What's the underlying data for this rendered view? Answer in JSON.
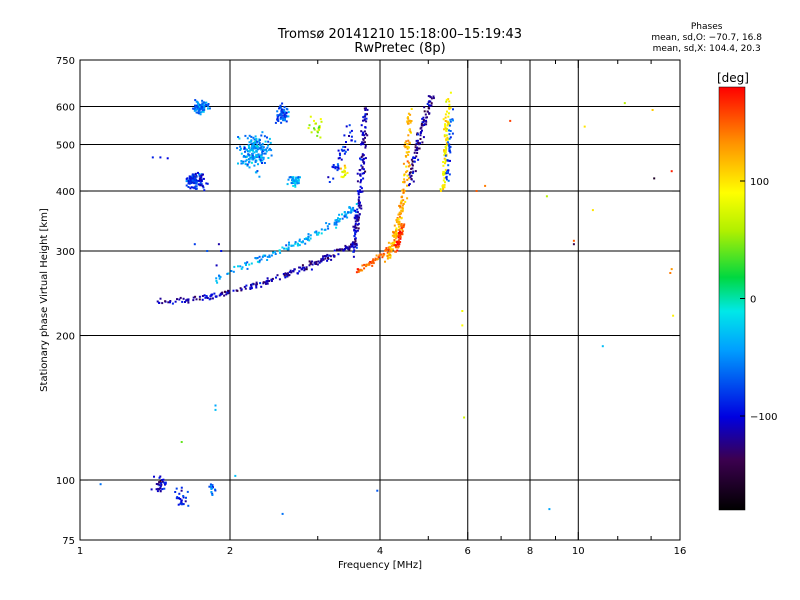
{
  "chart_data": {
    "type": "scatter",
    "title": "Tromsø 20141210 15:18:00–15:19:43",
    "subtitle": "RwPretec (8p)",
    "stats": {
      "heading": "Phases",
      "line1": "mean, sd,O: −70.7, 16.8",
      "line2": "mean, sd,X: 104.4, 20.3"
    },
    "xlabel": "Frequency [MHz]",
    "ylabel": "Stationary phase Virtual Height [km]",
    "x_scale": "log",
    "y_scale": "log",
    "xlim": [
      1,
      16
    ],
    "ylim": [
      75,
      750
    ],
    "x_ticks": [
      {
        "v": 1,
        "label": "1"
      },
      {
        "v": 2,
        "label": "2"
      },
      {
        "v": 4,
        "label": "4"
      },
      {
        "v": 6,
        "label": "6"
      },
      {
        "v": 8,
        "label": "8"
      },
      {
        "v": 10,
        "label": "10"
      },
      {
        "v": 16,
        "label": "16"
      }
    ],
    "x_minor": [
      3,
      5,
      7,
      9,
      12,
      14
    ],
    "y_ticks": [
      {
        "v": 75,
        "label": "75"
      },
      {
        "v": 100,
        "label": "100"
      },
      {
        "v": 200,
        "label": "200"
      },
      {
        "v": 300,
        "label": "300"
      },
      {
        "v": 400,
        "label": "400"
      },
      {
        "v": 500,
        "label": "500"
      },
      {
        "v": 600,
        "label": "600"
      },
      {
        "v": 750,
        "label": "750"
      }
    ],
    "grid": {
      "vertical": [
        2,
        4,
        6,
        8,
        10
      ],
      "horizontal": [
        100,
        200,
        300,
        400,
        500,
        600
      ]
    },
    "colorbar": {
      "label": "[deg]",
      "range": [
        -180,
        180
      ],
      "ticks": [
        {
          "v": 100,
          "label": "100"
        },
        {
          "v": 0,
          "label": "0"
        },
        {
          "v": -100,
          "label": "−100"
        }
      ]
    },
    "segments": [
      {
        "x": [
          1.45,
          1.6,
          1.75,
          1.9,
          2.0,
          2.2,
          2.4,
          2.6,
          2.8,
          3.0,
          3.2,
          3.4,
          3.55
        ],
        "y": [
          236,
          237,
          239,
          243,
          246,
          252,
          260,
          268,
          276,
          285,
          293,
          302,
          312
        ],
        "phase": -115,
        "n": 220,
        "sx": 0.015,
        "sy": 0.012
      },
      {
        "x": [
          1.85,
          2.0,
          2.2,
          2.4,
          2.6,
          2.8,
          3.0,
          3.2,
          3.4,
          3.55
        ],
        "y": [
          260,
          272,
          284,
          295,
          305,
          315,
          326,
          340,
          356,
          372
        ],
        "phase": -40,
        "n": 140,
        "sx": 0.02,
        "sy": 0.015
      },
      {
        "x": [
          3.55,
          3.6,
          3.65,
          3.7,
          3.75
        ],
        "y": [
          300,
          340,
          400,
          480,
          590
        ],
        "phase": -110,
        "n": 150,
        "sx": 0.012,
        "sy": 0.03
      },
      {
        "x": [
          3.6,
          3.8,
          3.95,
          4.1,
          4.2
        ],
        "y": [
          272,
          282,
          290,
          300,
          305
        ],
        "phase": 150,
        "n": 60,
        "sx": 0.01,
        "sy": 0.01
      },
      {
        "x": [
          4.15,
          4.25,
          4.35,
          4.42,
          4.5,
          4.55,
          4.6
        ],
        "y": [
          290,
          310,
          340,
          370,
          420,
          500,
          600
        ],
        "phase": 120,
        "n": 180,
        "sx": 0.012,
        "sy": 0.02
      },
      {
        "x": [
          4.3,
          4.38,
          4.45
        ],
        "y": [
          300,
          320,
          340
        ],
        "phase": 160,
        "n": 50,
        "sx": 0.01,
        "sy": 0.015
      },
      {
        "x": [
          4.6,
          4.7,
          4.8,
          4.9,
          5.0,
          5.1
        ],
        "y": [
          420,
          470,
          520,
          560,
          600,
          620
        ],
        "phase": -120,
        "n": 100,
        "sx": 0.012,
        "sy": 0.03
      },
      {
        "x": [
          5.35,
          5.4,
          5.45,
          5.5
        ],
        "y": [
          400,
          470,
          550,
          620
        ],
        "phase": 95,
        "n": 80,
        "sx": 0.01,
        "sy": 0.03
      },
      {
        "x": [
          5.45,
          5.52,
          5.58
        ],
        "y": [
          420,
          500,
          580
        ],
        "phase": -75,
        "n": 40,
        "sx": 0.01,
        "sy": 0.03
      },
      {
        "x": [
          3.2,
          3.35,
          3.5
        ],
        "y": [
          430,
          480,
          530
        ],
        "phase": -95,
        "n": 40,
        "sx": 0.02,
        "sy": 0.04
      }
    ],
    "clusters": [
      {
        "x": 1.75,
        "y": 600,
        "sx": 0.03,
        "sy": 0.025,
        "n": 90,
        "phase": -55
      },
      {
        "x": 1.7,
        "y": 420,
        "sx": 0.04,
        "sy": 0.03,
        "n": 110,
        "phase": -85
      },
      {
        "x": 2.25,
        "y": 480,
        "sx": 0.055,
        "sy": 0.07,
        "n": 200,
        "phase": -45
      },
      {
        "x": 2.55,
        "y": 580,
        "sx": 0.03,
        "sy": 0.04,
        "n": 60,
        "phase": -70
      },
      {
        "x": 2.7,
        "y": 420,
        "sx": 0.025,
        "sy": 0.025,
        "n": 40,
        "phase": -40
      },
      {
        "x": 3.0,
        "y": 540,
        "sx": 0.03,
        "sy": 0.05,
        "n": 20,
        "phase": 70
      },
      {
        "x": 3.4,
        "y": 440,
        "sx": 0.02,
        "sy": 0.03,
        "n": 15,
        "phase": 90
      },
      {
        "x": 1.45,
        "y": 98,
        "sx": 0.03,
        "sy": 0.03,
        "n": 30,
        "phase": -110
      },
      {
        "x": 1.6,
        "y": 92,
        "sx": 0.03,
        "sy": 0.04,
        "n": 25,
        "phase": -90
      },
      {
        "x": 1.85,
        "y": 95,
        "sx": 0.02,
        "sy": 0.03,
        "n": 15,
        "phase": -60
      }
    ],
    "points": [
      {
        "x": 1.4,
        "y": 470,
        "p": -90
      },
      {
        "x": 1.45,
        "y": 470,
        "p": -95
      },
      {
        "x": 1.5,
        "y": 468,
        "p": -100
      },
      {
        "x": 1.88,
        "y": 280,
        "p": -110
      },
      {
        "x": 1.92,
        "y": 300,
        "p": -95
      },
      {
        "x": 1.9,
        "y": 310,
        "p": -115
      },
      {
        "x": 1.6,
        "y": 120,
        "p": 40
      },
      {
        "x": 1.87,
        "y": 140,
        "p": -30
      },
      {
        "x": 1.87,
        "y": 143,
        "p": -40
      },
      {
        "x": 1.1,
        "y": 98,
        "p": -60
      },
      {
        "x": 2.05,
        "y": 102,
        "p": -30
      },
      {
        "x": 2.55,
        "y": 85,
        "p": -60
      },
      {
        "x": 1.7,
        "y": 310,
        "p": -80
      },
      {
        "x": 1.8,
        "y": 300,
        "p": -70
      },
      {
        "x": 3.95,
        "y": 95,
        "p": -70
      },
      {
        "x": 5.9,
        "y": 135,
        "p": 70
      },
      {
        "x": 5.85,
        "y": 210,
        "p": 90
      },
      {
        "x": 5.85,
        "y": 225,
        "p": 85
      },
      {
        "x": 6.25,
        "y": 400,
        "p": 150
      },
      {
        "x": 6.5,
        "y": 410,
        "p": 140
      },
      {
        "x": 7.3,
        "y": 560,
        "p": 160
      },
      {
        "x": 8.65,
        "y": 390,
        "p": 60
      },
      {
        "x": 8.75,
        "y": 87,
        "p": -40
      },
      {
        "x": 9.8,
        "y": 310,
        "p": -140
      },
      {
        "x": 9.8,
        "y": 315,
        "p": 150
      },
      {
        "x": 10.3,
        "y": 545,
        "p": 100
      },
      {
        "x": 10.7,
        "y": 365,
        "p": 100
      },
      {
        "x": 11.2,
        "y": 190,
        "p": -30
      },
      {
        "x": 12.4,
        "y": 610,
        "p": 60
      },
      {
        "x": 14.1,
        "y": 590,
        "p": 110
      },
      {
        "x": 14.2,
        "y": 425,
        "p": -160
      },
      {
        "x": 15.4,
        "y": 440,
        "p": 170
      },
      {
        "x": 15.3,
        "y": 270,
        "p": 140
      },
      {
        "x": 15.4,
        "y": 275,
        "p": 130
      },
      {
        "x": 15.5,
        "y": 220,
        "p": 95
      }
    ]
  }
}
